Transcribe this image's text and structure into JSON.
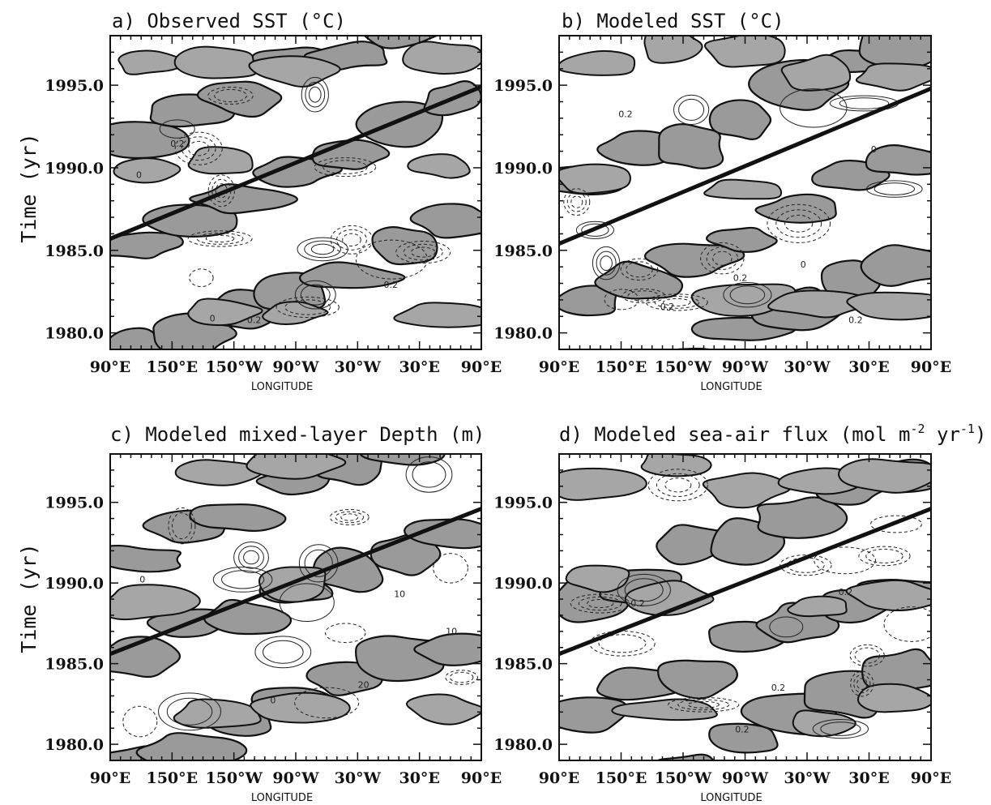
{
  "ylabel_shared": "Time (yr)",
  "chart_data": [
    {
      "type": "heatmap",
      "title": "a) Observed SST (°C)",
      "xlabel": "LONGITUDE",
      "xticks": [
        "90°E",
        "150°E",
        "150°W",
        "90°W",
        "30°W",
        "30°E",
        "90°E"
      ],
      "yticks": [
        "1995.0",
        "1990.0",
        "1985.0",
        "1980.0"
      ],
      "ylabel": "Time (yr)",
      "xlim": [
        90,
        450
      ],
      "ylim": [
        1979,
        1998
      ],
      "contour_labels": [
        "0.2",
        "0",
        "0.2",
        "0",
        "0.2"
      ],
      "trend_line": {
        "x": [
          90,
          450
        ],
        "y": [
          1985.7,
          1994.9
        ]
      }
    },
    {
      "type": "heatmap",
      "title": "b) Modeled SST (°C)",
      "xlabel": "LONGITUDE",
      "xticks": [
        "90°E",
        "150°E",
        "150°W",
        "90°W",
        "30°W",
        "30°E",
        "90°E"
      ],
      "yticks": [
        "1995.0",
        "1990.0",
        "1985.0",
        "1980.0"
      ],
      "ylabel": "",
      "xlim": [
        90,
        450
      ],
      "ylim": [
        1979,
        1998
      ],
      "contour_labels": [
        "0.2",
        "0",
        "0.2",
        "0.2",
        "0.2",
        "0"
      ],
      "trend_line": {
        "x": [
          90,
          450
        ],
        "y": [
          1985.4,
          1994.8
        ]
      }
    },
    {
      "type": "heatmap",
      "title": "c) Modeled mixed-layer Depth (m)",
      "xlabel": "LONGITUDE",
      "xticks": [
        "90°E",
        "150°E",
        "150°W",
        "90°W",
        "30°W",
        "30°E",
        "90°E"
      ],
      "yticks": [
        "1995.0",
        "1990.0",
        "1985.0",
        "1980.0"
      ],
      "ylabel": "Time (yr)",
      "xlim": [
        90,
        450
      ],
      "ylim": [
        1979,
        1998
      ],
      "contour_labels": [
        "0",
        "10",
        "20",
        "10",
        "0"
      ],
      "trend_line": {
        "x": [
          90,
          450
        ],
        "y": [
          1985.6,
          1994.6
        ]
      }
    },
    {
      "type": "heatmap",
      "title": "d) Modeled sea-air flux (mol m",
      "title_sup1": "-2",
      "title_mid": " yr",
      "title_sup2": "-1",
      "title_end": ")",
      "xlabel": "LONGITUDE",
      "xticks": [
        "90°E",
        "150°E",
        "150°W",
        "90°W",
        "30°W",
        "30°E",
        "90°E"
      ],
      "yticks": [
        "1995.0",
        "1990.0",
        "1985.0",
        "1980.0"
      ],
      "ylabel": "",
      "xlim": [
        90,
        450
      ],
      "ylim": [
        1979,
        1998
      ],
      "contour_labels": [
        "0.2",
        "0.2",
        "0.2",
        "0.2"
      ],
      "trend_line": {
        "x": [
          90,
          450
        ],
        "y": [
          1985.6,
          1994.6
        ]
      }
    }
  ]
}
